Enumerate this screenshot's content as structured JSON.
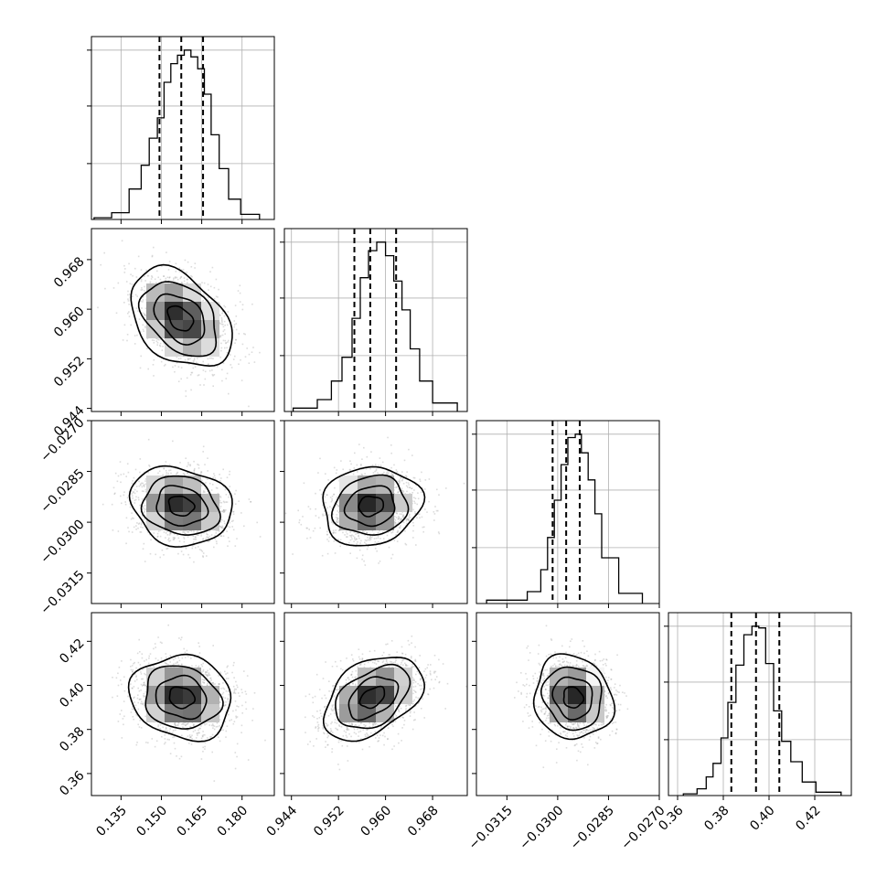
{
  "chart_data": {
    "type": "corner",
    "parameters": 4,
    "grid": true,
    "diagonal": [
      {
        "param": 0,
        "type": "histogram",
        "bin_edges": [
          0.125,
          0.1315,
          0.138,
          0.1425,
          0.1455,
          0.1485,
          0.151,
          0.1535,
          0.156,
          0.1585,
          0.161,
          0.1635,
          0.166,
          0.1685,
          0.1715,
          0.175,
          0.1795,
          0.1865
        ],
        "counts": [
          0.01,
          0.04,
          0.18,
          0.32,
          0.48,
          0.6,
          0.81,
          0.92,
          0.97,
          1.0,
          0.96,
          0.89,
          0.74,
          0.5,
          0.3,
          0.12,
          0.03
        ],
        "quantiles": [
          0.1493,
          0.1574,
          0.1655
        ],
        "xlim": [
          0.124,
          0.192
        ],
        "yticks_rel": [
          0.33,
          0.67,
          1.0
        ]
      },
      {
        "param": 1,
        "type": "histogram",
        "bin_edges": [
          0.9443,
          0.9484,
          0.9508,
          0.9526,
          0.9543,
          0.9557,
          0.9571,
          0.9585,
          0.96,
          0.9614,
          0.9628,
          0.9642,
          0.9658,
          0.968,
          0.9722
        ],
        "counts": [
          0.02,
          0.07,
          0.18,
          0.32,
          0.55,
          0.79,
          0.95,
          1.0,
          0.92,
          0.77,
          0.6,
          0.37,
          0.18,
          0.05
        ],
        "quantiles": [
          0.9547,
          0.9574,
          0.9618
        ],
        "xlim": [
          0.9428,
          0.9739
        ],
        "yticks_rel": [
          0.33,
          0.67,
          1.0
        ]
      },
      {
        "param": 2,
        "type": "histogram",
        "bin_edges": [
          -0.0321,
          -0.0309,
          -0.0305,
          -0.0303,
          -0.0301,
          -0.0299,
          -0.0297,
          -0.02948,
          -0.0293,
          -0.0291,
          -0.0289,
          -0.0287,
          -0.0282,
          -0.0275
        ],
        "counts": [
          0.02,
          0.07,
          0.2,
          0.39,
          0.61,
          0.82,
          0.98,
          1.0,
          0.89,
          0.73,
          0.53,
          0.27,
          0.06
        ],
        "quantiles": [
          -0.03015,
          -0.02975,
          -0.02935
        ],
        "xlim": [
          -0.0324,
          -0.027
        ],
        "yticks_rel": [
          0.33,
          0.67,
          1.0
        ]
      },
      {
        "param": 3,
        "type": "histogram",
        "bin_edges": [
          0.3625,
          0.3685,
          0.3725,
          0.3755,
          0.379,
          0.382,
          0.3855,
          0.389,
          0.3925,
          0.3955,
          0.3985,
          0.402,
          0.4055,
          0.4095,
          0.4145,
          0.4205,
          0.4315
        ],
        "counts": [
          0.01,
          0.04,
          0.11,
          0.19,
          0.34,
          0.55,
          0.77,
          0.95,
          1.0,
          0.99,
          0.78,
          0.5,
          0.32,
          0.2,
          0.08,
          0.02
        ],
        "quantiles": [
          0.3835,
          0.3943,
          0.4045
        ],
        "xlim": [
          0.356,
          0.436
        ],
        "yticks_rel": [
          0.33,
          0.67,
          1.0
        ]
      }
    ],
    "off_diagonal": [
      {
        "row": 1,
        "col": 0,
        "x_param": 0,
        "y_param": 1,
        "center": [
          0.157,
          0.9585
        ],
        "sigma": [
          0.0094,
          0.004
        ],
        "rho": -0.38,
        "xlim": [
          0.124,
          0.192
        ],
        "ylim": [
          0.9435,
          0.973
        ]
      },
      {
        "row": 2,
        "col": 0,
        "x_param": 0,
        "y_param": 2,
        "center": [
          0.1573,
          -0.02952
        ],
        "sigma": [
          0.0094,
          0.00058
        ],
        "rho": -0.15,
        "xlim": [
          0.124,
          0.192
        ],
        "ylim": [
          -0.0324,
          -0.027
        ]
      },
      {
        "row": 2,
        "col": 1,
        "x_param": 1,
        "y_param": 2,
        "center": [
          0.9575,
          -0.02952
        ],
        "sigma": [
          0.0042,
          0.00058
        ],
        "rho": 0.1,
        "xlim": [
          0.9428,
          0.9739
        ],
        "ylim": [
          -0.0324,
          -0.027
        ]
      },
      {
        "row": 3,
        "col": 0,
        "x_param": 0,
        "y_param": 3,
        "center": [
          0.1575,
          0.3945
        ],
        "sigma": [
          0.0094,
          0.0095
        ],
        "rho": -0.12,
        "xlim": [
          0.124,
          0.192
        ],
        "ylim": [
          0.35,
          0.433
        ]
      },
      {
        "row": 3,
        "col": 1,
        "x_param": 1,
        "y_param": 3,
        "center": [
          0.9578,
          0.3945
        ],
        "sigma": [
          0.0042,
          0.0095
        ],
        "rho": 0.42,
        "xlim": [
          0.9428,
          0.9739
        ],
        "ylim": [
          0.35,
          0.433
        ]
      },
      {
        "row": 3,
        "col": 2,
        "x_param": 2,
        "y_param": 3,
        "center": [
          -0.02955,
          0.3945
        ],
        "sigma": [
          0.00058,
          0.0095
        ],
        "rho": -0.1,
        "xlim": [
          -0.0324,
          -0.027
        ],
        "ylim": [
          0.35,
          0.433
        ]
      }
    ],
    "contour_levels": [
      0.5,
      1.0,
      1.5,
      2.0
    ],
    "x_tick_labels": [
      [
        "0.135",
        "0.150",
        "0.165",
        "0.180"
      ],
      [
        "0.944",
        "0.952",
        "0.960",
        "0.968"
      ],
      [
        "−0.0315",
        "−0.0300",
        "−0.0285",
        "−0.0270"
      ],
      [
        "0.36",
        "0.38",
        "0.40",
        "0.42"
      ]
    ],
    "x_tick_values": [
      [
        0.135,
        0.15,
        0.165,
        0.18
      ],
      [
        0.944,
        0.952,
        0.96,
        0.968
      ],
      [
        -0.0315,
        -0.03,
        -0.0285,
        -0.027
      ],
      [
        0.36,
        0.38,
        0.4,
        0.42
      ]
    ],
    "y_tick_labels": {
      "1": [
        "0.944",
        "0.952",
        "0.960",
        "0.968"
      ],
      "2": [
        "−0.0315",
        "−0.0300",
        "−0.0285",
        "−0.0270"
      ],
      "3": [
        "0.36",
        "0.38",
        "0.40",
        "0.42"
      ]
    },
    "y_tick_values": {
      "1": [
        0.944,
        0.952,
        0.96,
        0.968
      ],
      "2": [
        -0.0315,
        -0.03,
        -0.0285,
        -0.027
      ],
      "3": [
        0.36,
        0.38,
        0.4,
        0.42
      ]
    },
    "colors": {
      "line": "#000000",
      "grid": "#b0b0b0",
      "points": "#9a9a9a"
    }
  }
}
